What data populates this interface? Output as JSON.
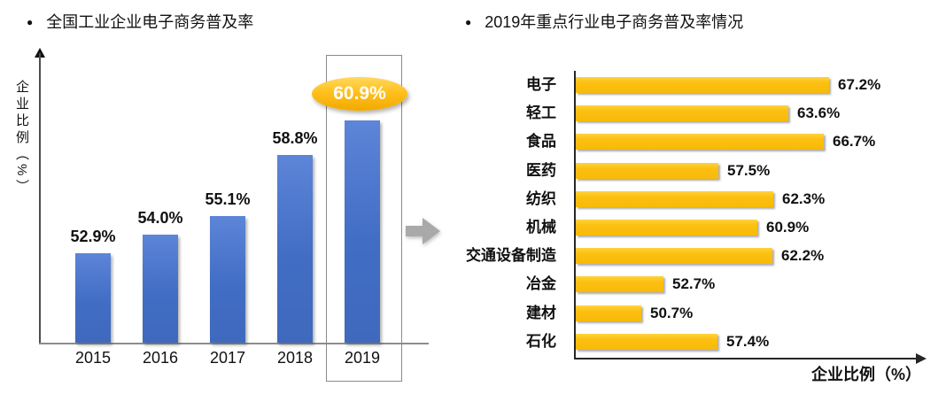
{
  "panels": {
    "left": {
      "bullet": "●",
      "title": "全国工业企业电子商务普及率",
      "ylabel": "企业比例（%）"
    },
    "right": {
      "bullet": "●",
      "title": "2019年重点行业电子商务普及率情况",
      "xlabel": "企业比例（%）"
    }
  },
  "colors": {
    "blue_bar": "#4472C4",
    "gold_bar": "#FFC013",
    "highlight_ellipse": "#FFBE00",
    "flow_arrow_gray": "#A9A9A9",
    "axis": "#333333",
    "outline_box": "#8A8A8A",
    "text": "#111111",
    "highlight_text": "#FFFFFF"
  },
  "chart_data": [
    {
      "type": "bar",
      "title": "全国工业企业电子商务普及率",
      "ylabel": "企业比例（%）",
      "xlabel": "",
      "categories": [
        "2015",
        "2016",
        "2017",
        "2018",
        "2019"
      ],
      "values": [
        52.9,
        54.0,
        55.1,
        58.8,
        60.9
      ],
      "labels": [
        "52.9%",
        "54.0%",
        "55.1%",
        "58.8%",
        "60.9%"
      ],
      "ylim": [
        47.5,
        64.5
      ],
      "grid": false,
      "legend": "none",
      "highlight": {
        "category": "2019",
        "label": "60.9%",
        "style": "gold-ellipse-with-outline-box"
      }
    },
    {
      "type": "bar",
      "orientation": "horizontal",
      "title": "2019年重点行业电子商务普及率情况",
      "xlabel": "企业比例（%）",
      "ylabel": "",
      "categories": [
        "电子",
        "轻工",
        "食品",
        "医药",
        "纺织",
        "机械",
        "交通设备制造",
        "冶金",
        "建材",
        "石化"
      ],
      "values": [
        67.2,
        63.6,
        66.7,
        57.5,
        62.3,
        60.9,
        62.2,
        52.7,
        50.7,
        57.4
      ],
      "labels": [
        "67.2%",
        "63.6%",
        "66.7%",
        "57.5%",
        "62.3%",
        "60.9%",
        "62.2%",
        "52.7%",
        "50.7%",
        "57.4%"
      ],
      "xlim": [
        45,
        75
      ],
      "grid": false,
      "legend": "none"
    }
  ]
}
